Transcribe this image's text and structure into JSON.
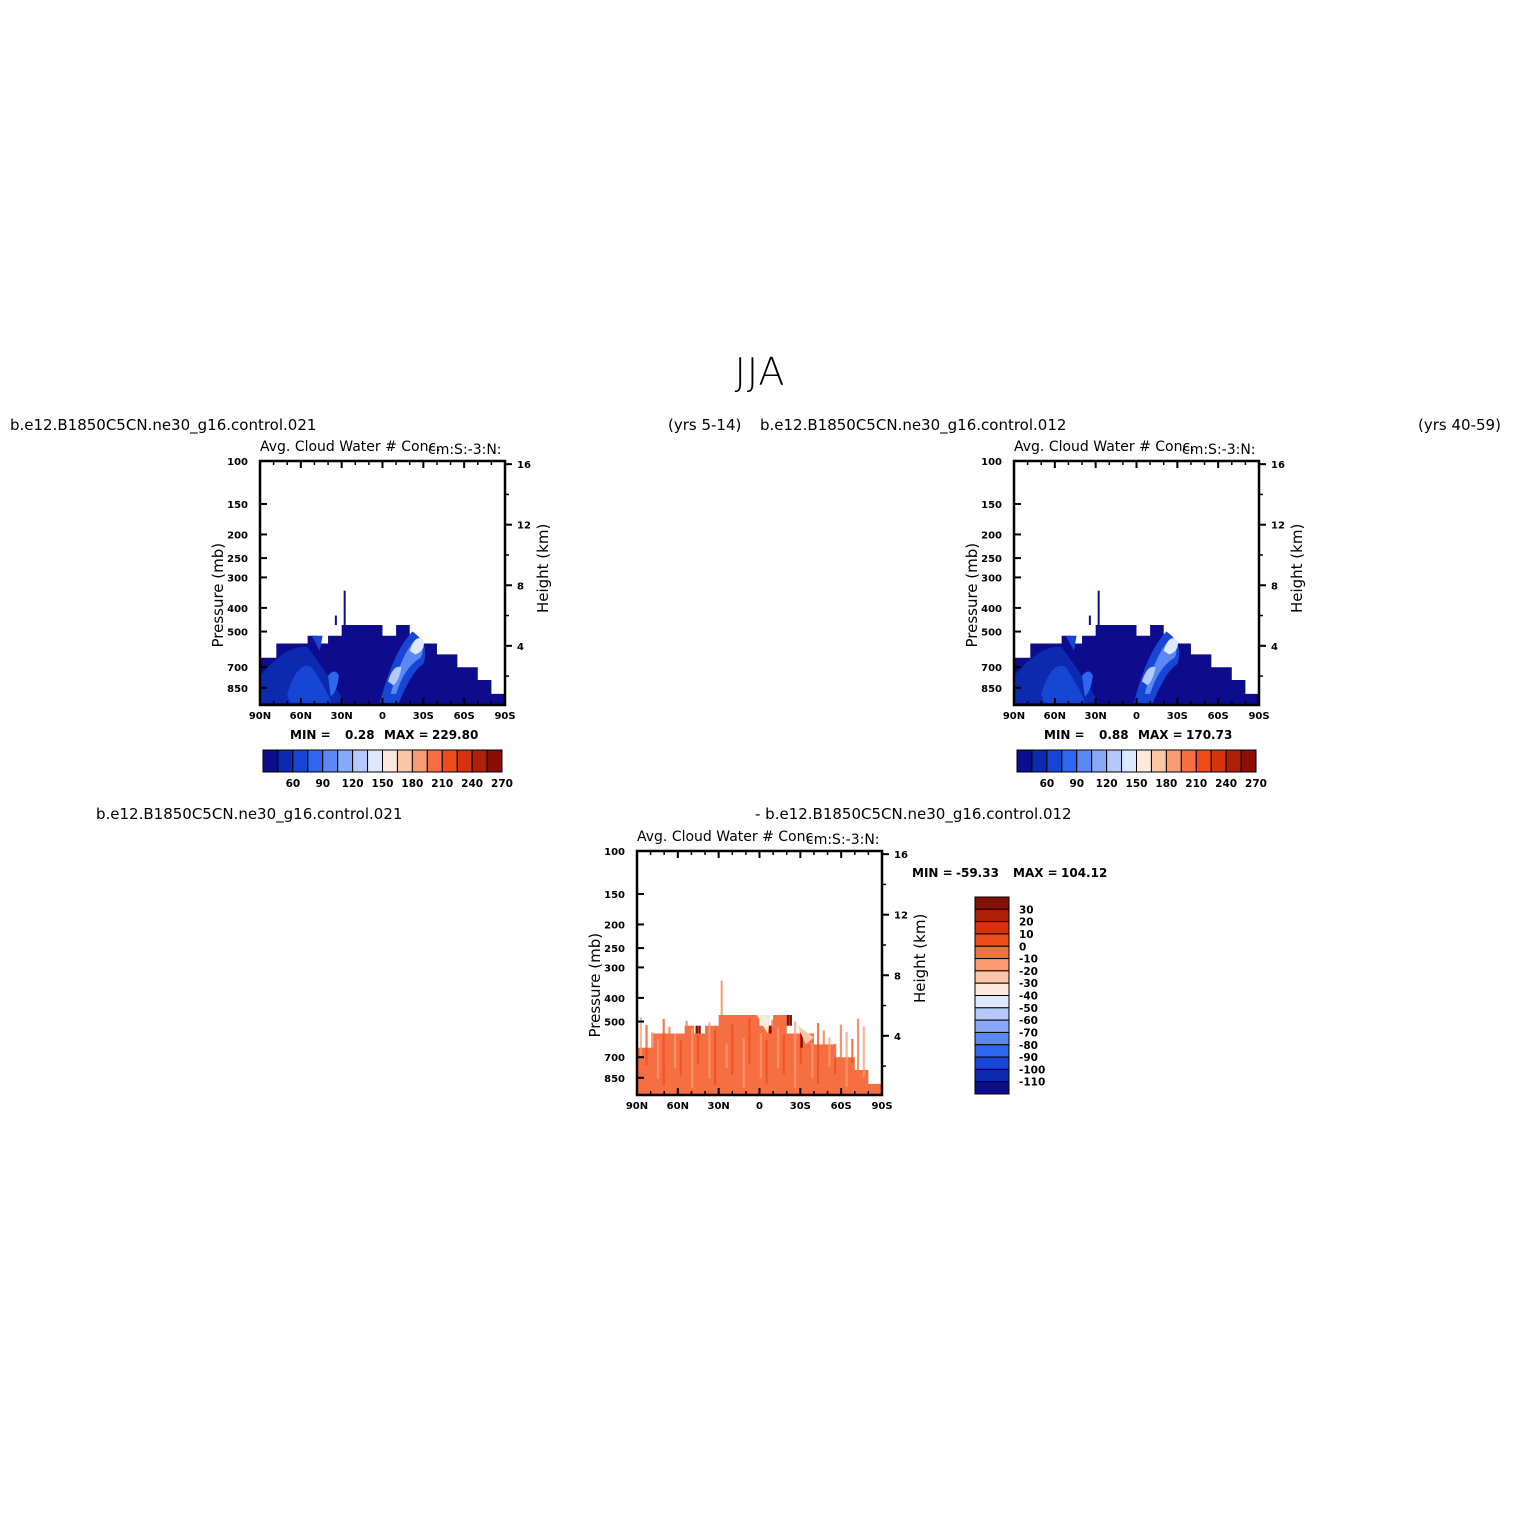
{
  "figure": {
    "title": "JJA",
    "panel1": {
      "case_left": "b.e12.B1850C5CN.ne30_g16.control.021",
      "years": "(yrs 5-14)",
      "var_title": "Avg. Cloud Water # Conc.",
      "units": "cm:S:-3:N:",
      "min_label": "MIN =",
      "min_value": "0.28",
      "max_label": "MAX =",
      "max_value": "229.80"
    },
    "panel2": {
      "case_left": "b.e12.B1850C5CN.ne30_g16.control.012",
      "years": "(yrs 40-59)",
      "var_title": "Avg. Cloud Water # Conc.",
      "units": "cm:S:-3:N:",
      "min_label": "MIN =",
      "min_value": "0.88",
      "max_label": "MAX =",
      "max_value": "170.73"
    },
    "panel3": {
      "case_a": "b.e12.B1850C5CN.ne30_g16.control.021",
      "case_b": "- b.e12.B1850C5CN.ne30_g16.control.012",
      "var_title": "Avg. Cloud Water # Conc.",
      "units": "cm:S:-3:N:",
      "min_label": "MIN =",
      "min_value": "-59.33",
      "max_label": "MAX =",
      "max_value": "104.12"
    }
  },
  "chart_data": [
    {
      "type": "heatmap",
      "title": "Avg. Cloud Water # Conc.",
      "units": "cm:S:-3:N:",
      "ylabel": "Pressure (mb)",
      "ylabel_right": "Height (km)",
      "x_ticks": [
        "90N",
        "60N",
        "30N",
        "0",
        "30S",
        "60S",
        "90S"
      ],
      "y_ticks": [
        100,
        150,
        200,
        250,
        300,
        400,
        500,
        700,
        850
      ],
      "y2_ticks": [
        4,
        8,
        12,
        16
      ],
      "colorbar_labels": [
        "60",
        "90",
        "120",
        "150",
        "180",
        "210",
        "240",
        "270"
      ],
      "colors": [
        "#0c0c8c",
        "#0b2ab0",
        "#1746d4",
        "#2f66f0",
        "#5a88f5",
        "#88a9f7",
        "#b4c9fa",
        "#dde8fd",
        "#fde9dc",
        "#fbc6a8",
        "#f89b73",
        "#f56f43",
        "#ef4b1b",
        "#d5330c",
        "#b02008",
        "#8a0e04"
      ],
      "min": 0.28,
      "max": 229.8
    },
    {
      "type": "heatmap",
      "title": "Avg. Cloud Water # Conc.",
      "units": "cm:S:-3:N:",
      "ylabel": "Pressure (mb)",
      "ylabel_right": "Height (km)",
      "x_ticks": [
        "90N",
        "60N",
        "30N",
        "0",
        "30S",
        "60S",
        "90S"
      ],
      "y_ticks": [
        100,
        150,
        200,
        250,
        300,
        400,
        500,
        700,
        850
      ],
      "y2_ticks": [
        4,
        8,
        12,
        16
      ],
      "colorbar_labels": [
        "60",
        "90",
        "120",
        "150",
        "180",
        "210",
        "240",
        "270"
      ],
      "colors": [
        "#0c0c8c",
        "#0b2ab0",
        "#1746d4",
        "#2f66f0",
        "#5a88f5",
        "#88a9f7",
        "#b4c9fa",
        "#dde8fd",
        "#fde9dc",
        "#fbc6a8",
        "#f89b73",
        "#f56f43",
        "#ef4b1b",
        "#d5330c",
        "#b02008",
        "#8a0e04"
      ],
      "min": 0.88,
      "max": 170.73
    },
    {
      "type": "heatmap",
      "title": "Avg. Cloud Water # Conc.",
      "units": "cm:S:-3:N:",
      "ylabel": "Pressure (mb)",
      "ylabel_right": "Height (km)",
      "x_ticks": [
        "90N",
        "60N",
        "30N",
        "0",
        "30S",
        "60S",
        "90S"
      ],
      "y_ticks": [
        100,
        150,
        200,
        250,
        300,
        400,
        500,
        700,
        850
      ],
      "y2_ticks": [
        4,
        8,
        12,
        16
      ],
      "colorbar_labels": [
        "30",
        "20",
        "10",
        "0",
        "-10",
        "-20",
        "-30",
        "-40",
        "-50",
        "-60",
        "-70",
        "-80",
        "-90",
        "-100",
        "-110"
      ],
      "colors": [
        "#8a0e04",
        "#b02008",
        "#d5330c",
        "#ef4b1b",
        "#f56f43",
        "#f89b73",
        "#fbc6a8",
        "#fde9dc",
        "#dde8fd",
        "#b4c9fa",
        "#88a9f7",
        "#5a88f5",
        "#2f66f0",
        "#1746d4",
        "#0b2ab0",
        "#0c0c8c"
      ],
      "min": -59.33,
      "max": 104.12
    }
  ]
}
